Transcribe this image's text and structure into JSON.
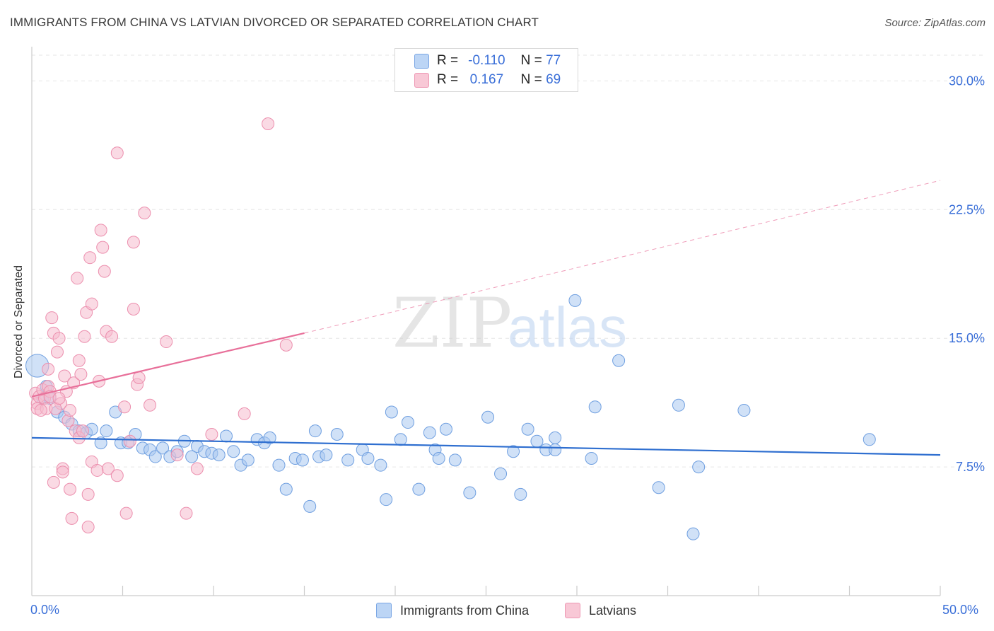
{
  "title": "IMMIGRANTS FROM CHINA VS LATVIAN DIVORCED OR SEPARATED CORRELATION CHART",
  "source": "Source: ZipAtlas.com",
  "watermark": {
    "zip": "ZIP",
    "atlas": "atlas"
  },
  "legend_top": [
    {
      "r_label": "R =",
      "r_value": "-0.110",
      "n_label": "N =",
      "n_value": "77"
    },
    {
      "r_label": "R =",
      "r_value": "0.167",
      "n_label": "N =",
      "n_value": "69"
    }
  ],
  "legend_bottom": [
    "Immigrants from China",
    "Latvians"
  ],
  "colors": {
    "blue_fill": "#a9c8f0",
    "blue_stroke": "#6f9fe0",
    "blue_line": "#2f6fd0",
    "pink_fill": "#f6bccd",
    "pink_stroke": "#ec8fae",
    "pink_line": "#e8709a",
    "axis_text": "#3a6fd8",
    "grid": "#e6e6e6"
  },
  "chart_data": {
    "type": "scatter",
    "title": "IMMIGRANTS FROM CHINA VS LATVIAN DIVORCED OR SEPARATED CORRELATION CHART",
    "xlabel": "",
    "ylabel": "Divorced or Separated",
    "xlim": [
      0,
      50
    ],
    "ylim": [
      0,
      31.5
    ],
    "x_tick_labels": [
      "0.0%",
      "50.0%"
    ],
    "y_ticks": [
      7.5,
      15.0,
      22.5,
      30.0
    ],
    "y_tick_labels": [
      "7.5%",
      "15.0%",
      "22.5%",
      "30.0%"
    ],
    "grid": true,
    "legend_position": "top-center",
    "series": [
      {
        "name": "Immigrants from China",
        "r": -0.11,
        "n": 77,
        "trend": {
          "x": [
            0,
            50
          ],
          "y": [
            9.2,
            8.2
          ],
          "dashed_extension": false
        },
        "points": [
          [
            0.3,
            13.4,
            1.9
          ],
          [
            0.8,
            12.2,
            1.0
          ],
          [
            0.6,
            11.5,
            1.0
          ],
          [
            1.0,
            11.5,
            1.0
          ],
          [
            1.4,
            10.7,
            1.0
          ],
          [
            1.8,
            10.4,
            1.0
          ],
          [
            2.2,
            10.0,
            1.0
          ],
          [
            2.6,
            9.6,
            1.0
          ],
          [
            3.0,
            9.5,
            1.0
          ],
          [
            3.3,
            9.7,
            1.0
          ],
          [
            3.8,
            8.9,
            1.0
          ],
          [
            4.1,
            9.6,
            1.0
          ],
          [
            4.6,
            10.7,
            1.0
          ],
          [
            4.9,
            8.9,
            1.0
          ],
          [
            5.3,
            8.9,
            1.0
          ],
          [
            5.7,
            9.4,
            1.0
          ],
          [
            6.1,
            8.6,
            1.0
          ],
          [
            6.5,
            8.5,
            1.0
          ],
          [
            6.8,
            8.1,
            1.0
          ],
          [
            7.2,
            8.6,
            1.0
          ],
          [
            7.6,
            8.1,
            1.0
          ],
          [
            8.0,
            8.4,
            1.0
          ],
          [
            8.4,
            9.0,
            1.0
          ],
          [
            8.8,
            8.1,
            1.0
          ],
          [
            9.1,
            8.7,
            1.0
          ],
          [
            9.5,
            8.4,
            1.0
          ],
          [
            9.9,
            8.3,
            1.0
          ],
          [
            10.3,
            8.2,
            1.0
          ],
          [
            10.7,
            9.3,
            1.0
          ],
          [
            11.1,
            8.4,
            1.0
          ],
          [
            11.5,
            7.6,
            1.0
          ],
          [
            11.9,
            7.9,
            1.0
          ],
          [
            12.4,
            9.1,
            1.0
          ],
          [
            12.8,
            8.9,
            1.0
          ],
          [
            13.1,
            9.2,
            1.0
          ],
          [
            13.6,
            7.6,
            1.0
          ],
          [
            14.0,
            6.2,
            1.0
          ],
          [
            14.5,
            8.0,
            1.0
          ],
          [
            14.9,
            7.9,
            1.0
          ],
          [
            15.3,
            5.2,
            1.0
          ],
          [
            15.6,
            9.6,
            1.0
          ],
          [
            15.8,
            8.1,
            1.0
          ],
          [
            16.2,
            8.2,
            1.0
          ],
          [
            16.8,
            9.4,
            1.0
          ],
          [
            17.4,
            7.9,
            1.0
          ],
          [
            18.2,
            8.5,
            1.0
          ],
          [
            18.5,
            8.0,
            1.0
          ],
          [
            19.2,
            7.6,
            1.0
          ],
          [
            19.5,
            5.6,
            1.0
          ],
          [
            19.8,
            10.7,
            1.0
          ],
          [
            20.3,
            9.1,
            1.0
          ],
          [
            20.7,
            10.1,
            1.0
          ],
          [
            21.3,
            6.2,
            1.0
          ],
          [
            21.9,
            9.5,
            1.0
          ],
          [
            22.2,
            8.5,
            1.0
          ],
          [
            22.4,
            8.0,
            1.0
          ],
          [
            22.8,
            9.7,
            1.0
          ],
          [
            23.3,
            7.9,
            1.0
          ],
          [
            24.1,
            6.0,
            1.0
          ],
          [
            25.1,
            10.4,
            1.0
          ],
          [
            25.8,
            7.1,
            1.0
          ],
          [
            26.5,
            8.4,
            1.0
          ],
          [
            26.9,
            5.9,
            1.0
          ],
          [
            27.3,
            9.7,
            1.0
          ],
          [
            27.8,
            9.0,
            1.0
          ],
          [
            28.3,
            8.5,
            1.0
          ],
          [
            28.8,
            9.2,
            1.0
          ],
          [
            28.8,
            8.5,
            1.0
          ],
          [
            29.9,
            17.2,
            1.0
          ],
          [
            30.8,
            8.0,
            1.0
          ],
          [
            31.0,
            11.0,
            1.0
          ],
          [
            32.3,
            13.7,
            1.0
          ],
          [
            34.5,
            6.3,
            1.0
          ],
          [
            35.6,
            11.1,
            1.0
          ],
          [
            36.4,
            3.6,
            1.0
          ],
          [
            36.7,
            7.5,
            1.0
          ],
          [
            39.2,
            10.8,
            1.0
          ],
          [
            46.1,
            9.1,
            1.0
          ]
        ]
      },
      {
        "name": "Latvians",
        "r": 0.167,
        "n": 69,
        "trend": {
          "x": [
            0,
            15
          ],
          "y": [
            11.6,
            15.3
          ],
          "dashed_extension": {
            "x": [
              15,
              50
            ],
            "y": [
              15.3,
              24.2
            ]
          }
        },
        "points": [
          [
            0.2,
            11.8,
            1.0
          ],
          [
            0.3,
            11.2,
            1.0
          ],
          [
            0.3,
            10.9,
            1.0
          ],
          [
            0.4,
            11.6,
            1.0
          ],
          [
            0.6,
            12.0,
            1.0
          ],
          [
            0.7,
            11.5,
            1.0
          ],
          [
            0.8,
            10.9,
            1.0
          ],
          [
            0.9,
            13.2,
            1.0
          ],
          [
            0.9,
            12.2,
            1.0
          ],
          [
            1.0,
            11.9,
            1.0
          ],
          [
            1.0,
            11.6,
            1.0
          ],
          [
            1.1,
            16.2,
            1.0
          ],
          [
            1.2,
            15.3,
            1.0
          ],
          [
            1.2,
            6.6,
            1.0
          ],
          [
            1.4,
            14.2,
            1.0
          ],
          [
            1.5,
            15.0,
            1.0
          ],
          [
            1.6,
            11.2,
            1.0
          ],
          [
            1.7,
            7.4,
            1.0
          ],
          [
            1.7,
            7.2,
            1.0
          ],
          [
            1.8,
            12.8,
            1.0
          ],
          [
            1.9,
            11.9,
            1.0
          ],
          [
            2.0,
            10.2,
            1.0
          ],
          [
            2.1,
            6.2,
            1.0
          ],
          [
            2.2,
            4.5,
            1.0
          ],
          [
            2.3,
            12.4,
            1.0
          ],
          [
            2.4,
            9.6,
            1.0
          ],
          [
            2.5,
            18.5,
            1.0
          ],
          [
            2.6,
            9.2,
            1.0
          ],
          [
            2.6,
            13.7,
            1.0
          ],
          [
            2.7,
            12.9,
            1.0
          ],
          [
            2.8,
            9.6,
            1.0
          ],
          [
            2.9,
            15.1,
            1.0
          ],
          [
            3.0,
            16.5,
            1.0
          ],
          [
            3.1,
            5.9,
            1.0
          ],
          [
            3.1,
            4.0,
            1.0
          ],
          [
            3.2,
            19.7,
            1.0
          ],
          [
            3.3,
            7.8,
            1.0
          ],
          [
            3.3,
            17.0,
            1.0
          ],
          [
            3.6,
            7.3,
            1.0
          ],
          [
            3.7,
            12.5,
            1.0
          ],
          [
            3.8,
            21.3,
            1.0
          ],
          [
            3.9,
            20.3,
            1.0
          ],
          [
            4.0,
            18.9,
            1.0
          ],
          [
            4.1,
            15.4,
            1.0
          ],
          [
            4.2,
            7.4,
            1.0
          ],
          [
            4.4,
            15.1,
            1.0
          ],
          [
            4.7,
            25.8,
            1.0
          ],
          [
            4.7,
            7.0,
            1.0
          ],
          [
            5.1,
            11.0,
            1.0
          ],
          [
            5.2,
            4.8,
            1.0
          ],
          [
            5.4,
            9.0,
            1.0
          ],
          [
            5.6,
            20.6,
            1.0
          ],
          [
            5.6,
            16.7,
            1.0
          ],
          [
            5.8,
            12.3,
            1.0
          ],
          [
            5.9,
            12.7,
            1.0
          ],
          [
            6.2,
            22.3,
            1.0
          ],
          [
            6.5,
            11.1,
            1.0
          ],
          [
            7.4,
            14.8,
            1.0
          ],
          [
            8.0,
            8.2,
            1.0
          ],
          [
            8.5,
            4.8,
            1.0
          ],
          [
            9.1,
            7.4,
            1.0
          ],
          [
            9.9,
            9.4,
            1.0
          ],
          [
            11.7,
            10.6,
            1.0
          ],
          [
            13.0,
            27.5,
            1.0
          ],
          [
            14.0,
            14.6,
            1.0
          ],
          [
            1.3,
            10.9,
            1.0
          ],
          [
            0.5,
            10.8,
            1.0
          ],
          [
            1.5,
            11.5,
            1.0
          ],
          [
            2.1,
            10.8,
            1.0
          ]
        ]
      }
    ]
  }
}
